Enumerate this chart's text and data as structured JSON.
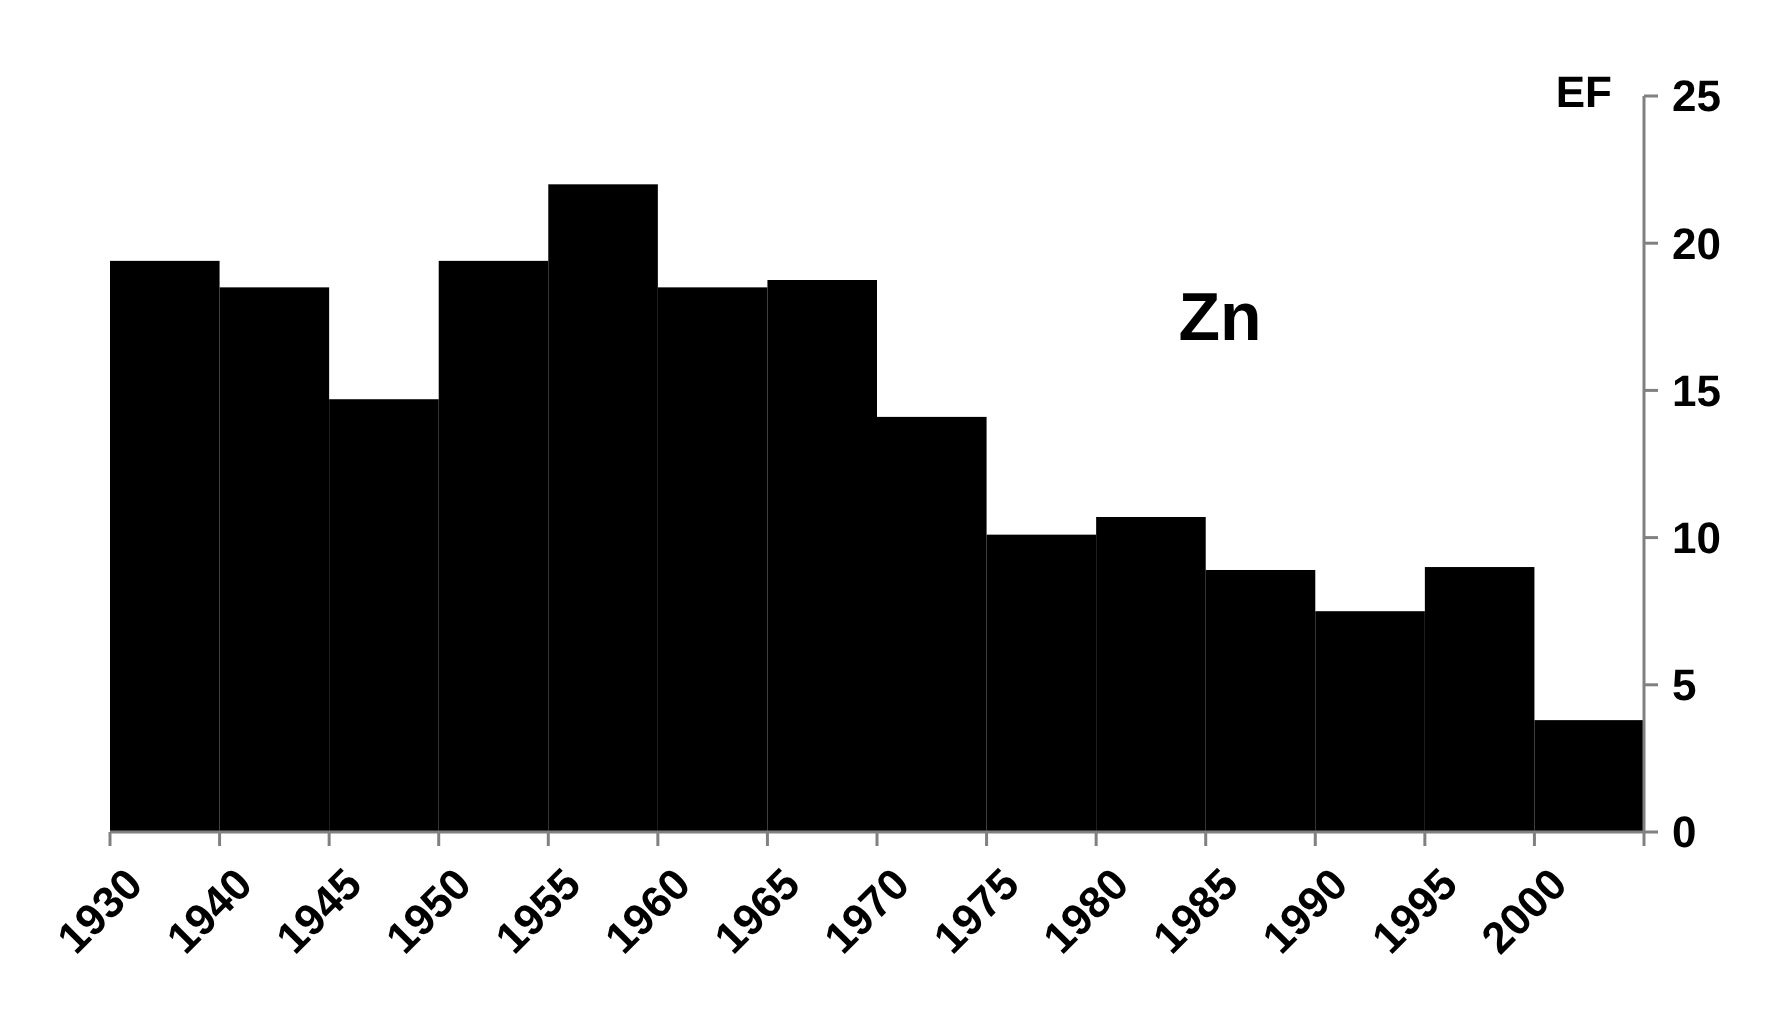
{
  "chart_data": {
    "type": "bar",
    "ylabel": "EF",
    "annotations": [
      "Zn"
    ],
    "categories": [
      "1930",
      "1940",
      "1945",
      "1950",
      "1955",
      "1960",
      "1965",
      "1970",
      "1975",
      "1980",
      "1985",
      "1990",
      "1995",
      "2000",
      null
    ],
    "values": [
      19.4,
      18.5,
      14.7,
      19.4,
      22.0,
      18.5,
      18.75,
      14.1,
      10.1,
      10.7,
      8.9,
      7.5,
      9.0,
      3.8,
      null
    ],
    "color": "#000000",
    "ylim": [
      0,
      25
    ],
    "yticks": [
      0,
      5,
      10,
      15,
      20,
      25
    ],
    "grid": false
  }
}
